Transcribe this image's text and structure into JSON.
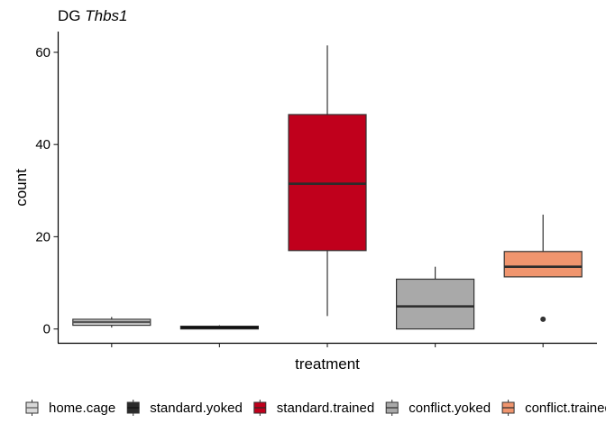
{
  "chart_data": {
    "type": "boxplot",
    "title_prefix": "DG ",
    "title_gene": "Thbs1",
    "xlabel": "treatment",
    "ylabel": "count",
    "ylim": [
      -3,
      64.5
    ],
    "yticks": [
      0,
      20,
      40,
      60
    ],
    "grid": false,
    "legend_position": "bottom",
    "series": [
      {
        "name": "home.cage",
        "color": "#d9d9d9",
        "median_color": "#555555",
        "whisker_low": 0.3,
        "q1": 0.8,
        "median": 1.5,
        "q3": 2.1,
        "whisker_high": 2.6,
        "outliers": []
      },
      {
        "name": "standard.yoked",
        "color": "#2b2b2b",
        "median_color": "#111111",
        "whisker_low": 0.0,
        "q1": 0.0,
        "median": 0.3,
        "q3": 0.6,
        "whisker_high": 0.8,
        "outliers": []
      },
      {
        "name": "standard.trained",
        "color": "#c0001c",
        "median_color": "#2b2b2b",
        "whisker_low": 2.8,
        "q1": 17.0,
        "median": 31.5,
        "q3": 46.5,
        "whisker_high": 61.5,
        "outliers": []
      },
      {
        "name": "conflict.yoked",
        "color": "#a9a9a9",
        "median_color": "#2b2b2b",
        "whisker_low": 0.0,
        "q1": 0.0,
        "median": 4.9,
        "q3": 10.8,
        "whisker_high": 13.5,
        "outliers": []
      },
      {
        "name": "conflict.trained",
        "color": "#f0956e",
        "median_color": "#2b2b2b",
        "whisker_low": 11.3,
        "q1": 11.3,
        "median": 13.5,
        "q3": 16.8,
        "whisker_high": 24.8,
        "outliers": [
          2.1
        ]
      }
    ]
  }
}
